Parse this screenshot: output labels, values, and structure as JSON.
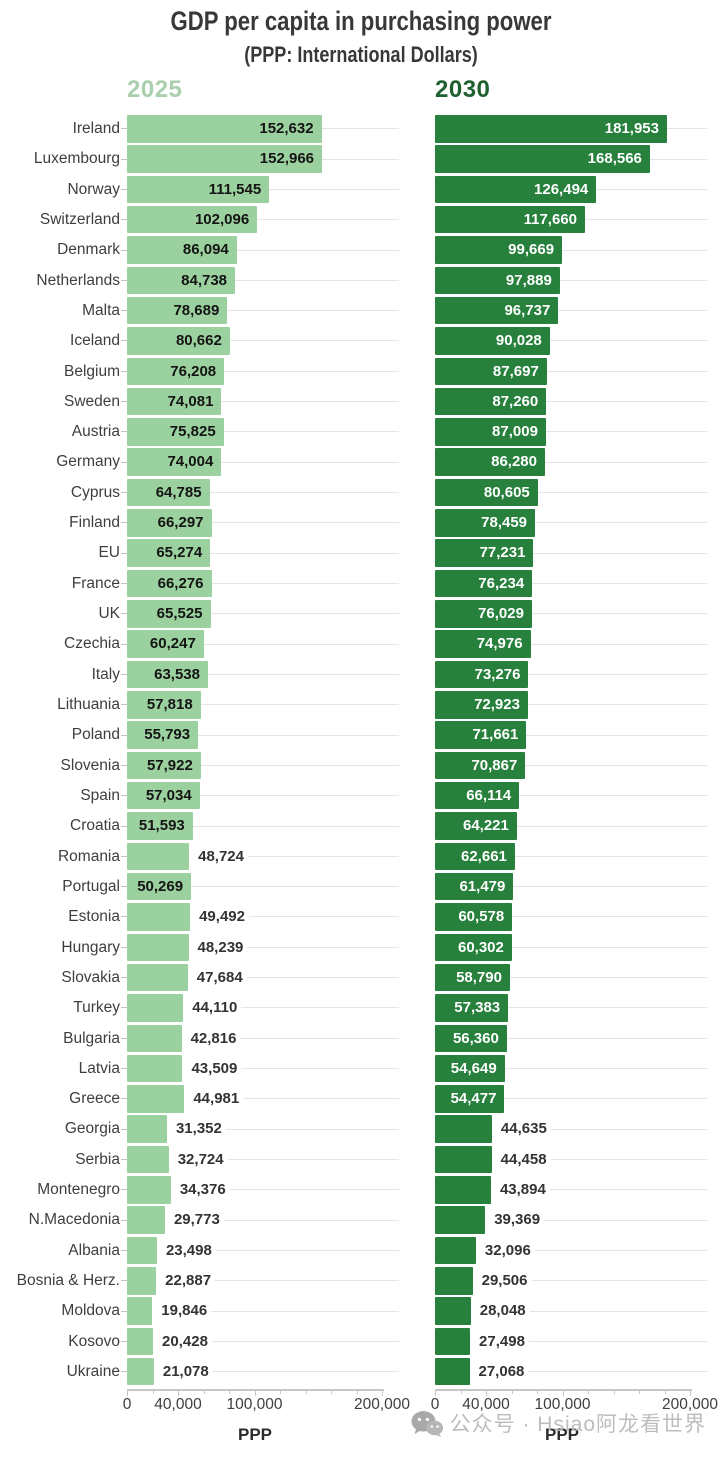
{
  "chart_data": {
    "type": "bar",
    "orientation": "horizontal",
    "title": "GDP per capita in purchasing power",
    "subtitle": "(PPP: International Dollars)",
    "xlabel": "PPP",
    "categories": [
      "Ireland",
      "Luxembourg",
      "Norway",
      "Switzerland",
      "Denmark",
      "Netherlands",
      "Malta",
      "Iceland",
      "Belgium",
      "Sweden",
      "Austria",
      "Germany",
      "Cyprus",
      "Finland",
      "EU",
      "France",
      "UK",
      "Czechia",
      "Italy",
      "Lithuania",
      "Poland",
      "Slovenia",
      "Spain",
      "Croatia",
      "Romania",
      "Portugal",
      "Estonia",
      "Hungary",
      "Slovakia",
      "Turkey",
      "Bulgaria",
      "Latvia",
      "Greece",
      "Georgia",
      "Serbia",
      "Montenegro",
      "N.Macedonia",
      "Albania",
      "Bosnia & Herz.",
      "Moldova",
      "Kosovo",
      "Ukraine"
    ],
    "series": [
      {
        "name": "2025",
        "color": "#9bd19e",
        "values": [
          152632,
          152966,
          111545,
          102096,
          86094,
          84738,
          78689,
          80662,
          76208,
          74081,
          75825,
          74004,
          64785,
          66297,
          65274,
          66276,
          65525,
          60247,
          63538,
          57818,
          55793,
          57922,
          57034,
          51593,
          48724,
          50269,
          49492,
          48239,
          47684,
          44110,
          42816,
          43509,
          44981,
          31352,
          32724,
          34376,
          29773,
          23498,
          22887,
          19846,
          20428,
          21078
        ]
      },
      {
        "name": "2030",
        "color": "#27803c",
        "values": [
          181953,
          168566,
          126494,
          117660,
          99669,
          97889,
          96737,
          90028,
          87697,
          87260,
          87009,
          86280,
          80605,
          78459,
          77231,
          76234,
          76029,
          74976,
          73276,
          72923,
          71661,
          70867,
          66114,
          64221,
          62661,
          61479,
          60578,
          60302,
          58790,
          57383,
          56360,
          54649,
          54477,
          44635,
          44458,
          43894,
          39369,
          32096,
          29506,
          28048,
          27498,
          27068
        ]
      }
    ],
    "xaxis": {
      "min": 0,
      "max": 200000,
      "major_ticks": [
        0,
        40000,
        100000,
        200000
      ],
      "major_tick_labels": [
        "0",
        "40,000",
        "100,000",
        "200,000"
      ],
      "minor_tick_step": 20000
    },
    "inside_label_min": 50000,
    "value_label_note": "every bar labeled; label inside bar when value >= 50,000, otherwise outside to the right",
    "grid": "light horizontal line per row",
    "legend_position": "year headers above each panel"
  },
  "colors": {
    "background": "#ffffff",
    "bar_2025": "#9bd19e",
    "bar_2030": "#27803c",
    "header_2025": "#a9cfac",
    "header_2030": "#1f6031",
    "title_text": "#383838",
    "label_text": "#3e3e3e",
    "tick_text": "#3e3e3e",
    "value_inside_2025": "#141414",
    "value_inside_2030": "#ffffff",
    "value_outside": "#333333",
    "grid": "#e4e4e4",
    "axis": "#c6c6c6",
    "ppp_text": "#2b2b2b",
    "watermark": "#bdbdbd"
  },
  "watermark": {
    "icon": "wechat-icon",
    "text": "公众号 · Hsiao阿龙看世界"
  }
}
